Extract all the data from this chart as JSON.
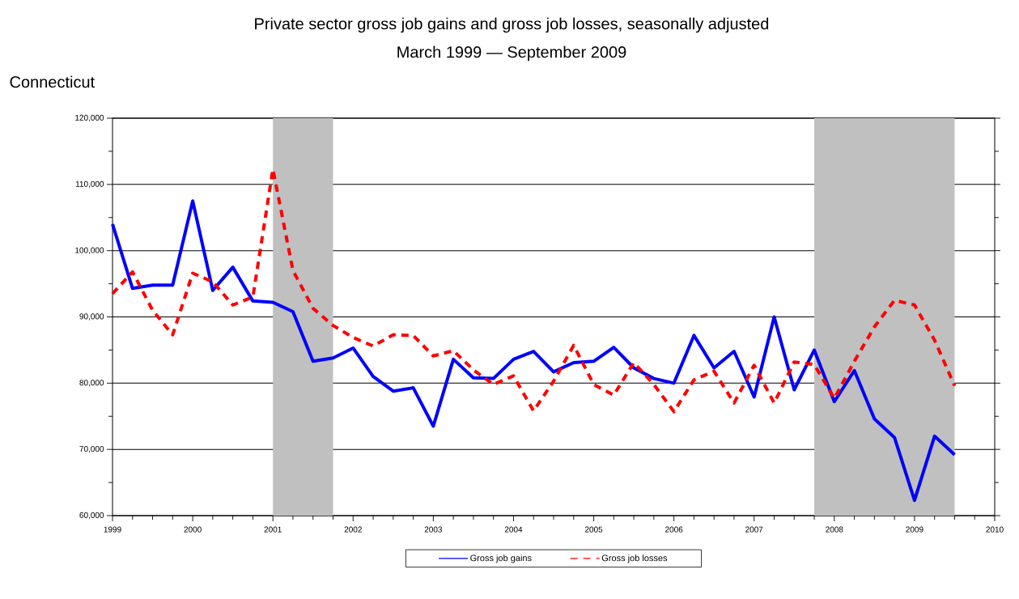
{
  "chart_data": {
    "type": "line",
    "title": "Private sector gross job gains and gross job losses, seasonally adjusted",
    "subtitle": "March 1999 — September 2009",
    "ylabel": "Connecticut",
    "x": [
      1999.0,
      1999.25,
      1999.5,
      1999.75,
      2000.0,
      2000.25,
      2000.5,
      2000.75,
      2001.0,
      2001.25,
      2001.5,
      2001.75,
      2002.0,
      2002.25,
      2002.5,
      2002.75,
      2003.0,
      2003.25,
      2003.5,
      2003.75,
      2004.0,
      2004.25,
      2004.5,
      2004.75,
      2005.0,
      2005.25,
      2005.5,
      2005.75,
      2006.0,
      2006.25,
      2006.5,
      2006.75,
      2007.0,
      2007.25,
      2007.5,
      2007.75,
      2008.0,
      2008.25,
      2008.5,
      2008.75,
      2009.0,
      2009.25,
      2009.5
    ],
    "series": [
      {
        "name": "Gross job gains",
        "color": "#0000ff",
        "line_style": "solid",
        "values": [
          104000,
          94300,
          94800,
          94800,
          107500,
          94000,
          97500,
          92400,
          92200,
          90800,
          83300,
          83800,
          85300,
          81000,
          78800,
          79300,
          73500,
          83600,
          80800,
          80700,
          83600,
          84800,
          81700,
          83100,
          83300,
          85400,
          82300,
          80700,
          80000,
          87200,
          82300,
          84800,
          77900,
          90000,
          79000,
          85000,
          77200,
          81900,
          74600,
          71800,
          62300,
          72000,
          69200
        ]
      },
      {
        "name": "Gross job losses",
        "color": "#ff0000",
        "line_style": "dashed",
        "values": [
          93500,
          96800,
          91000,
          87300,
          96600,
          95300,
          91800,
          93000,
          112300,
          97000,
          91300,
          88700,
          86900,
          85600,
          87300,
          87200,
          84100,
          84900,
          82000,
          79800,
          81100,
          75800,
          80300,
          85700,
          79800,
          78200,
          83100,
          79800,
          75700,
          80500,
          81800,
          77000,
          82700,
          77000,
          83200,
          82800,
          77700,
          83300,
          88500,
          92500,
          91800,
          86500,
          79600
        ]
      }
    ],
    "xlim": [
      1999,
      2010
    ],
    "xticks": [
      1999,
      2000,
      2001,
      2002,
      2003,
      2004,
      2005,
      2006,
      2007,
      2008,
      2009,
      2010
    ],
    "ylim": [
      60000,
      120000
    ],
    "yticks": [
      {
        "value": 60000,
        "label": "60,000"
      },
      {
        "value": 70000,
        "label": "70,000"
      },
      {
        "value": 80000,
        "label": "80,000"
      },
      {
        "value": 90000,
        "label": "90,000"
      },
      {
        "value": 100000,
        "label": "100,000"
      },
      {
        "value": 110000,
        "label": "110,000"
      },
      {
        "value": 120000,
        "label": "120,000"
      }
    ],
    "bands": [
      {
        "axis": "x",
        "from": 2001.0,
        "to": 2001.75,
        "color": "#c0c0c0"
      },
      {
        "axis": "x",
        "from": 2007.75,
        "to": 2009.5,
        "color": "#c0c0c0"
      }
    ],
    "grid": "y",
    "legend": "bottom",
    "marker": "none"
  }
}
